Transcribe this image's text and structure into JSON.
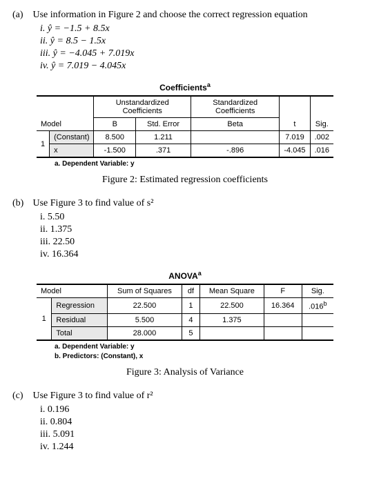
{
  "a": {
    "label": "(a)",
    "prompt": "Use information in Figure 2 and choose the correct regression equation",
    "opts": {
      "i": "i.  ŷ = −1.5 + 8.5x",
      "ii": "ii.  ŷ = 8.5 − 1.5x",
      "iii": "iii.  ŷ = −4.045 + 7.019x",
      "iv": "iv.  ŷ = 7.019 − 4.045x"
    }
  },
  "coef": {
    "title": "Coefficients",
    "sup": "a",
    "unstd_header": "Unstandardized Coefficients",
    "std_header": "Standardized Coefficients",
    "model_h": "Model",
    "B_h": "B",
    "SE_h": "Std. Error",
    "Beta_h": "Beta",
    "t_h": "t",
    "Sig_h": "Sig.",
    "row1_model": "1",
    "row1_name": "(Constant)",
    "row1_B": "8.500",
    "row1_SE": "1.211",
    "row1_Beta": "",
    "row1_t": "7.019",
    "row1_Sig": ".002",
    "row2_name": "x",
    "row2_B": "-1.500",
    "row2_SE": ".371",
    "row2_Beta": "-.896",
    "row2_t": "-4.045",
    "row2_Sig": ".016",
    "foot_a": "a. Dependent Variable: y",
    "caption": "Figure 2: Estimated regression coefficients"
  },
  "b": {
    "label": "(b)",
    "prompt": "Use Figure 3 to find value of s²",
    "opts": {
      "i": "i.  5.50",
      "ii": "ii.  1.375",
      "iii": "iii.  22.50",
      "iv": "iv.  16.364"
    }
  },
  "anova": {
    "title": "ANOVA",
    "sup": "a",
    "model_h": "Model",
    "SS_h": "Sum of Squares",
    "df_h": "df",
    "MS_h": "Mean Square",
    "F_h": "F",
    "Sig_h": "Sig.",
    "row1_model": "1",
    "row1_name": "Regression",
    "row1_SS": "22.500",
    "row1_df": "1",
    "row1_MS": "22.500",
    "row1_F": "16.364",
    "row1_Sig": ".016",
    "row1_Sig_sup": "b",
    "row2_name": "Residual",
    "row2_SS": "5.500",
    "row2_df": "4",
    "row2_MS": "1.375",
    "row3_name": "Total",
    "row3_SS": "28.000",
    "row3_df": "5",
    "foot_a": "a. Dependent Variable: y",
    "foot_b": "b. Predictors: (Constant), x",
    "caption": "Figure 3: Analysis of Variance"
  },
  "c": {
    "label": "(c)",
    "prompt": "Use Figure 3 to find value of r²",
    "opts": {
      "i": "i.  0.196",
      "ii": "ii.  0.804",
      "iii": "iii.  5.091",
      "iv": "iv.  1.244"
    }
  }
}
